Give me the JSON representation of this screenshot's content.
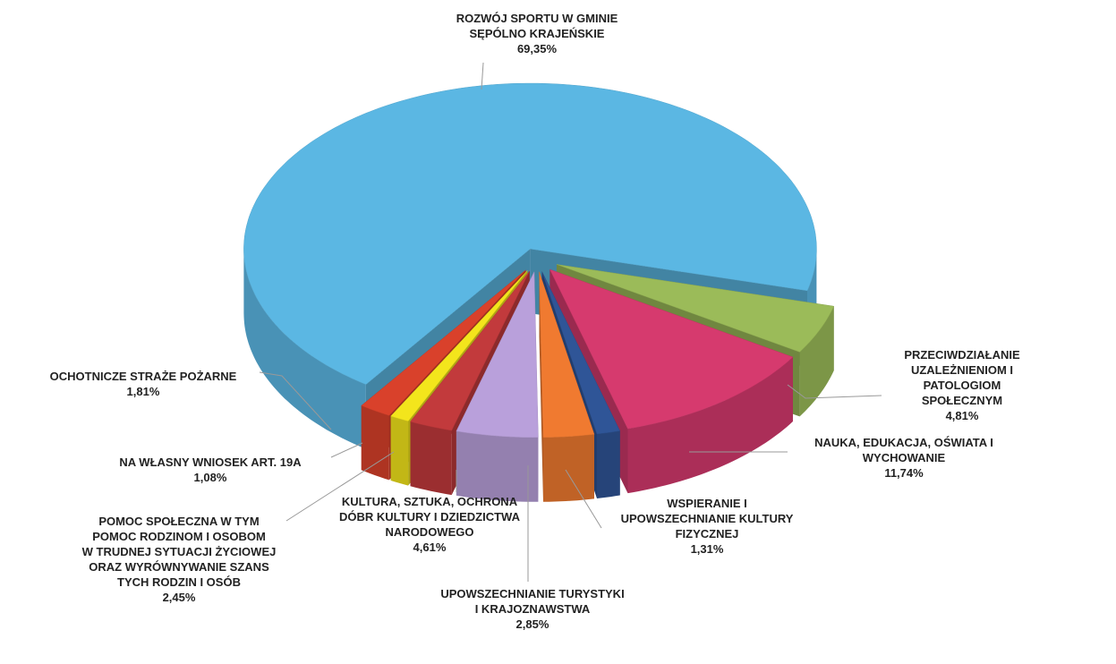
{
  "chart_data": {
    "type": "pie3d",
    "categories": [
      "ROZWÓJ SPORTU W GMINIE\nSĘPÓLNO KRAJEŃSKIE",
      "PRZECIWDZIAŁANIE\nUZALEŻNIENIOM I\nPATOLOGIOM SPOŁECZNYM",
      "NAUKA, EDUKACJA, OŚWIATA I\nWYCHOWANIE",
      "WSPIERANIE I\nUPOWSZECHNIANIE KULTURY\nFIZYCZNEJ",
      "UPOWSZECHNIANIE TURYSTYKI\nI KRAJOZNAWSTWA",
      "KULTURA, SZTUKA, OCHRONA\nDÓBR KULTURY I DZIEDZICTWA\nNARODOWEGO",
      "POMOC SPOŁECZNA W TYM\nPOMOC RODZINOM I OSOBOM\nW TRUDNEJ SYTUACJI ŻYCIOWEJ\nORAZ WYRÓWNYWANIE SZANS\nTYCH RODZIN I OSÓB",
      "NA WŁASNY WNIOSEK ART. 19A",
      "OCHOTNICZE STRAŻE POŻARNE"
    ],
    "values": [
      69.35,
      4.81,
      11.74,
      1.31,
      2.85,
      4.61,
      2.45,
      1.08,
      1.81
    ],
    "value_labels": [
      "69,35%",
      "4,81%",
      "11,74%",
      "1,31%",
      "2,85%",
      "4,61%",
      "2,45%",
      "1,08%",
      "1,81%"
    ],
    "colors": [
      "#5bb7e3",
      "#9bbb59",
      "#d63a6e",
      "#2f5597",
      "#f07a30",
      "#b9a0db",
      "#c23a3c",
      "#f3e51c",
      "#d9412b"
    ]
  }
}
